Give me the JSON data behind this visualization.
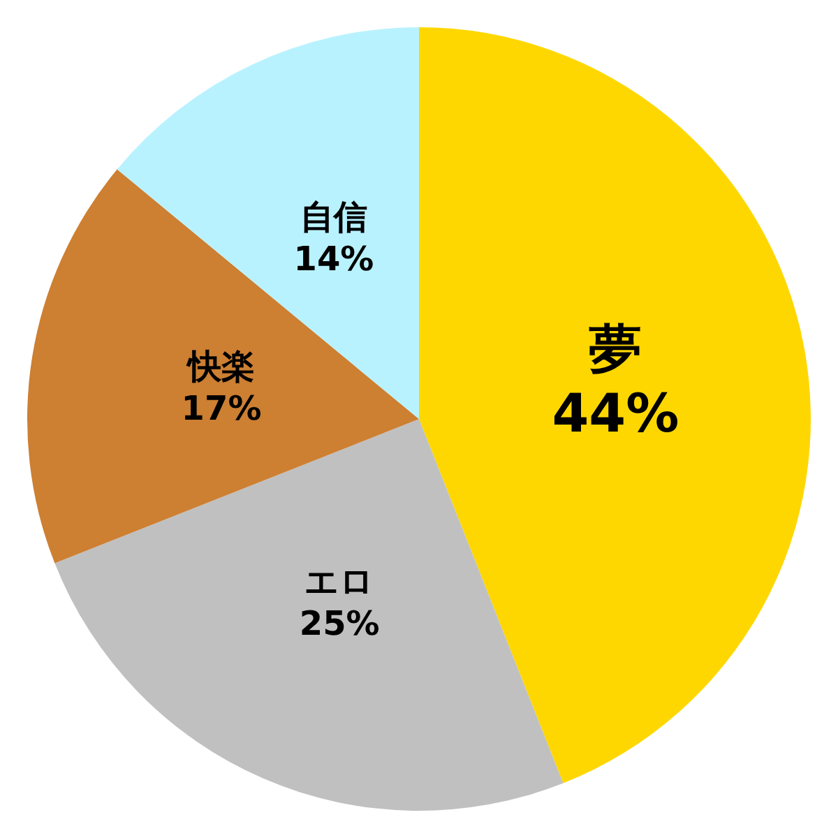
{
  "chart_data": {
    "type": "pie",
    "categories": [
      "夢",
      "エロ",
      "快楽",
      "自信"
    ],
    "values": [
      44,
      25,
      17,
      14
    ],
    "value_labels": [
      "44%",
      "25%",
      "17%",
      "14%"
    ],
    "colors": [
      "#ffd700",
      "#c0c0c0",
      "#cd7f32",
      "#b9f2ff"
    ]
  }
}
